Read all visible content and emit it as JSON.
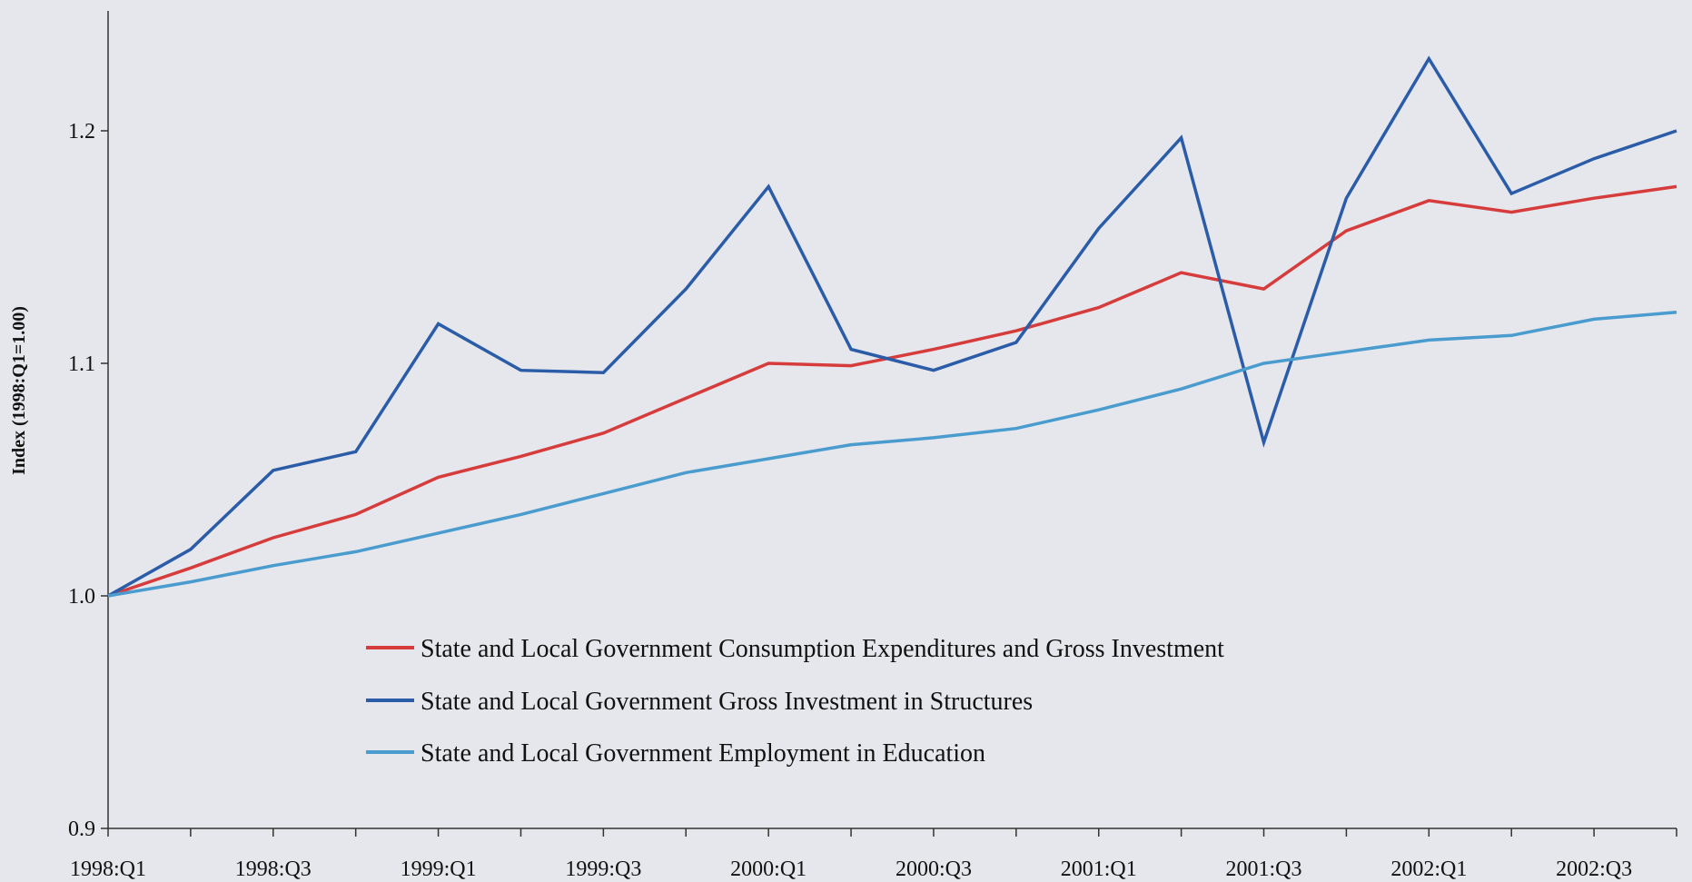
{
  "chart_data": {
    "type": "line",
    "ylabel": "Index (1998:Q1=1.00)",
    "ylim": [
      0.9,
      1.25
    ],
    "yticks": [
      "0.9",
      "1.0",
      "1.1",
      "1.2"
    ],
    "x": [
      "1998:Q1",
      "1998:Q2",
      "1998:Q3",
      "1998:Q4",
      "1999:Q1",
      "1999:Q2",
      "1999:Q3",
      "1999:Q4",
      "2000:Q1",
      "2000:Q2",
      "2000:Q3",
      "2000:Q4",
      "2001:Q1",
      "2001:Q2",
      "2001:Q3",
      "2001:Q4",
      "2002:Q1",
      "2002:Q2",
      "2002:Q3",
      "2002:Q4"
    ],
    "xtick_labels": [
      "1998:Q1",
      "",
      "1998:Q3",
      "",
      "1999:Q1",
      "",
      "1999:Q3",
      "",
      "2000:Q1",
      "",
      "2000:Q3",
      "",
      "2001:Q1",
      "",
      "2001:Q3",
      "",
      "2002:Q1",
      "",
      "2002:Q3",
      ""
    ],
    "grid": false,
    "legend_position": "lower-center",
    "series": [
      {
        "name": "State and Local Government Consumption Expenditures and Gross Investment",
        "color": "#d63c3c",
        "values": [
          1.0,
          1.012,
          1.025,
          1.035,
          1.051,
          1.06,
          1.07,
          1.085,
          1.1,
          1.099,
          1.106,
          1.114,
          1.124,
          1.139,
          1.132,
          1.157,
          1.17,
          1.165,
          1.171,
          1.176
        ]
      },
      {
        "name": "State and Local Government Gross Investment in Structures",
        "color": "#2b5ca8",
        "values": [
          1.0,
          1.02,
          1.054,
          1.062,
          1.117,
          1.097,
          1.096,
          1.132,
          1.176,
          1.106,
          1.097,
          1.109,
          1.158,
          1.197,
          1.066,
          1.171,
          1.231,
          1.173,
          1.188,
          1.2
        ]
      },
      {
        "name": "State and Local Government Employment in Education",
        "color": "#4a9ccf",
        "values": [
          1.0,
          1.006,
          1.013,
          1.019,
          1.027,
          1.035,
          1.044,
          1.053,
          1.059,
          1.065,
          1.068,
          1.072,
          1.08,
          1.089,
          1.1,
          1.105,
          1.11,
          1.112,
          1.119,
          1.122
        ]
      }
    ]
  }
}
